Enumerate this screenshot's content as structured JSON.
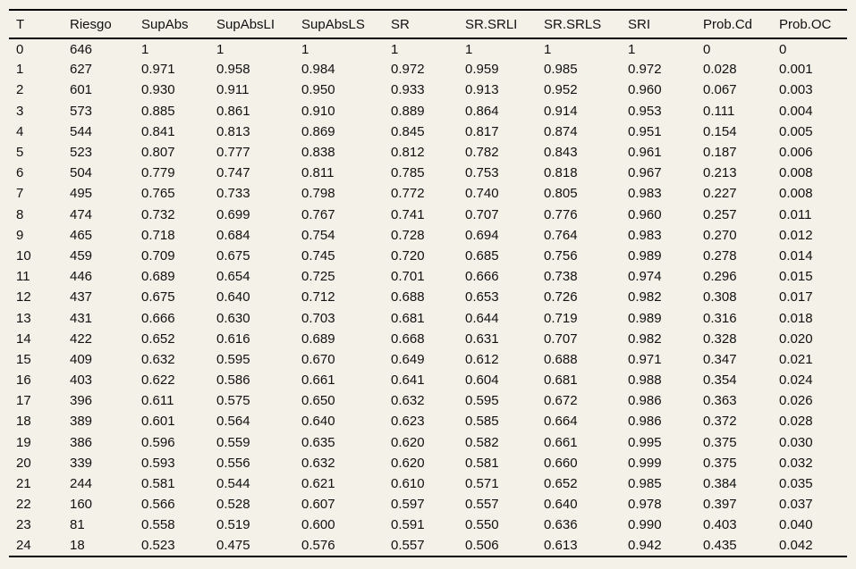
{
  "colors": {
    "background": "#f4f1e8",
    "rule": "#000000",
    "text": "#111111"
  },
  "chart_data": {
    "type": "table",
    "title": "",
    "columns": [
      "T",
      "Riesgo",
      "SupAbs",
      "SupAbsLI",
      "SupAbsLS",
      "SR",
      "SR.SRLI",
      "SR.SRLS",
      "SRI",
      "Prob.Cd",
      "Prob.OC"
    ],
    "rows": [
      [
        "0",
        "646",
        "1",
        "1",
        "1",
        "1",
        "1",
        "1",
        "1",
        "0",
        "0"
      ],
      [
        "1",
        "627",
        "0.971",
        "0.958",
        "0.984",
        "0.972",
        "0.959",
        "0.985",
        "0.972",
        "0.028",
        "0.001"
      ],
      [
        "2",
        "601",
        "0.930",
        "0.911",
        "0.950",
        "0.933",
        "0.913",
        "0.952",
        "0.960",
        "0.067",
        "0.003"
      ],
      [
        "3",
        "573",
        "0.885",
        "0.861",
        "0.910",
        "0.889",
        "0.864",
        "0.914",
        "0.953",
        "0.111",
        "0.004"
      ],
      [
        "4",
        "544",
        "0.841",
        "0.813",
        "0.869",
        "0.845",
        "0.817",
        "0.874",
        "0.951",
        "0.154",
        "0.005"
      ],
      [
        "5",
        "523",
        "0.807",
        "0.777",
        "0.838",
        "0.812",
        "0.782",
        "0.843",
        "0.961",
        "0.187",
        "0.006"
      ],
      [
        "6",
        "504",
        "0.779",
        "0.747",
        "0.811",
        "0.785",
        "0.753",
        "0.818",
        "0.967",
        "0.213",
        "0.008"
      ],
      [
        "7",
        "495",
        "0.765",
        "0.733",
        "0.798",
        "0.772",
        "0.740",
        "0.805",
        "0.983",
        "0.227",
        "0.008"
      ],
      [
        "8",
        "474",
        "0.732",
        "0.699",
        "0.767",
        "0.741",
        "0.707",
        "0.776",
        "0.960",
        "0.257",
        "0.011"
      ],
      [
        "9",
        "465",
        "0.718",
        "0.684",
        "0.754",
        "0.728",
        "0.694",
        "0.764",
        "0.983",
        "0.270",
        "0.012"
      ],
      [
        "10",
        "459",
        "0.709",
        "0.675",
        "0.745",
        "0.720",
        "0.685",
        "0.756",
        "0.989",
        "0.278",
        "0.014"
      ],
      [
        "11",
        "446",
        "0.689",
        "0.654",
        "0.725",
        "0.701",
        "0.666",
        "0.738",
        "0.974",
        "0.296",
        "0.015"
      ],
      [
        "12",
        "437",
        "0.675",
        "0.640",
        "0.712",
        "0.688",
        "0.653",
        "0.726",
        "0.982",
        "0.308",
        "0.017"
      ],
      [
        "13",
        "431",
        "0.666",
        "0.630",
        "0.703",
        "0.681",
        "0.644",
        "0.719",
        "0.989",
        "0.316",
        "0.018"
      ],
      [
        "14",
        "422",
        "0.652",
        "0.616",
        "0.689",
        "0.668",
        "0.631",
        "0.707",
        "0.982",
        "0.328",
        "0.020"
      ],
      [
        "15",
        "409",
        "0.632",
        "0.595",
        "0.670",
        "0.649",
        "0.612",
        "0.688",
        "0.971",
        "0.347",
        "0.021"
      ],
      [
        "16",
        "403",
        "0.622",
        "0.586",
        "0.661",
        "0.641",
        "0.604",
        "0.681",
        "0.988",
        "0.354",
        "0.024"
      ],
      [
        "17",
        "396",
        "0.611",
        "0.575",
        "0.650",
        "0.632",
        "0.595",
        "0.672",
        "0.986",
        "0.363",
        "0.026"
      ],
      [
        "18",
        "389",
        "0.601",
        "0.564",
        "0.640",
        "0.623",
        "0.585",
        "0.664",
        "0.986",
        "0.372",
        "0.028"
      ],
      [
        "19",
        "386",
        "0.596",
        "0.559",
        "0.635",
        "0.620",
        "0.582",
        "0.661",
        "0.995",
        "0.375",
        "0.030"
      ],
      [
        "20",
        "339",
        "0.593",
        "0.556",
        "0.632",
        "0.620",
        "0.581",
        "0.660",
        "0.999",
        "0.375",
        "0.032"
      ],
      [
        "21",
        "244",
        "0.581",
        "0.544",
        "0.621",
        "0.610",
        "0.571",
        "0.652",
        "0.985",
        "0.384",
        "0.035"
      ],
      [
        "22",
        "160",
        "0.566",
        "0.528",
        "0.607",
        "0.597",
        "0.557",
        "0.640",
        "0.978",
        "0.397",
        "0.037"
      ],
      [
        "23",
        "81",
        "0.558",
        "0.519",
        "0.600",
        "0.591",
        "0.550",
        "0.636",
        "0.990",
        "0.403",
        "0.040"
      ],
      [
        "24",
        "18",
        "0.523",
        "0.475",
        "0.576",
        "0.557",
        "0.506",
        "0.613",
        "0.942",
        "0.435",
        "0.042"
      ]
    ]
  }
}
